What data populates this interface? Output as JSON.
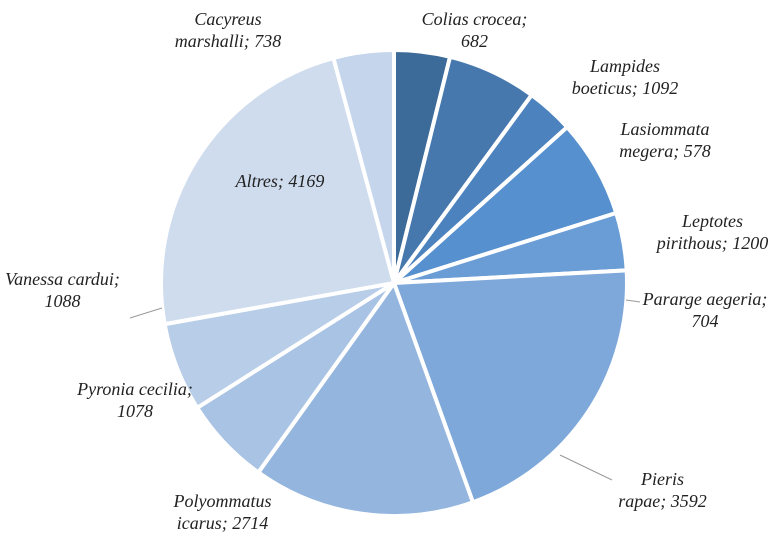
{
  "chart_data": {
    "type": "pie",
    "values": [
      682,
      1092,
      578,
      1200,
      704,
      3592,
      2714,
      1078,
      1088,
      4169,
      738
    ],
    "value_labels": [
      "Colias crocea; 682",
      "Lampides boeticus; 1092",
      "Lasiommata megera; 578",
      "Leptotes pirithous; 1200",
      "Pararge aegeria; 704",
      "Pieris rapae; 3592",
      "Polyommatus icarus; 2714",
      "Pyronia cecilia; 1078",
      "Vanessa cardui; 1088",
      "Altres; 4169",
      "Cacyreus marshalli; 738"
    ],
    "colors": [
      "#3d6b99",
      "#4678ae",
      "#4c82bd",
      "#5690cf",
      "#6a9dd6",
      "#7fa8da",
      "#94b5de",
      "#a9c3e4",
      "#b8cde8",
      "#cfdcee",
      "#c4d5ec"
    ]
  }
}
